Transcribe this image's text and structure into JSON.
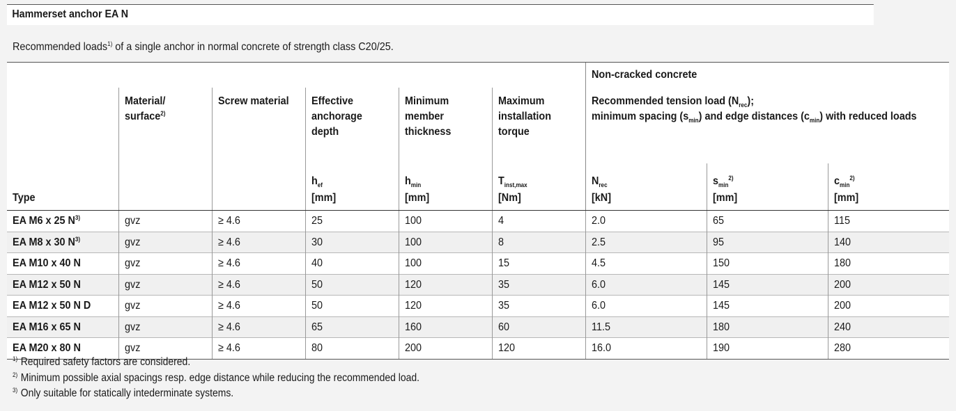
{
  "title": "Hammerset anchor EA N",
  "intro": {
    "before": "Recommended loads",
    "sup": "1)",
    "after": " of a single anchor in normal concrete of strength class C20/25."
  },
  "header": {
    "group_title": "Non-cracked concrete",
    "group_line1": {
      "a": "Recommended tension load (N",
      "sub": "rec",
      "b": ");"
    },
    "group_line2": {
      "a": "minimum spacing (s",
      "sub1": "min",
      "b": ") and edge distances (c",
      "sub2": "min",
      "c": ") with reduced loads"
    },
    "type": "Type",
    "material": {
      "line1": "Material/",
      "line2": "surface",
      "sup": "2)"
    },
    "screw": "Screw material",
    "effective": {
      "l1": "Effective",
      "l2": "anchorage",
      "l3": "depth",
      "sym": "h",
      "sub": "ef",
      "unit": "[mm]"
    },
    "minimum": {
      "l1": "Minimum",
      "l2": "member",
      "l3": "thickness",
      "sym": "h",
      "sub": "min",
      "unit": "[mm]"
    },
    "torque": {
      "l1": "Maximum",
      "l2": "installation",
      "l3": "torque",
      "sym": "T",
      "sub": "inst,max",
      "unit": "[Nm]"
    },
    "nrec": {
      "sym": "N",
      "sub": "rec",
      "unit": "[kN]"
    },
    "smin": {
      "sym": "s",
      "sub": "min",
      "sup": "2)",
      "unit": "[mm]"
    },
    "cmin": {
      "sym": "c",
      "sub": "min",
      "sup": "2)",
      "unit": "[mm]"
    }
  },
  "rows": [
    {
      "type": "EA M6 x 25 N",
      "sup": "3)",
      "material": "gvz",
      "screw": "≥ 4.6",
      "hef": "25",
      "hmin": "100",
      "tinst": "4",
      "nrec": "2.0",
      "smin": "65",
      "cmin": "115"
    },
    {
      "type": "EA M8 x 30 N",
      "sup": "3)",
      "material": "gvz",
      "screw": "≥ 4.6",
      "hef": "30",
      "hmin": "100",
      "tinst": "8",
      "nrec": "2.5",
      "smin": "95",
      "cmin": "140"
    },
    {
      "type": "EA M10 x 40 N",
      "sup": "",
      "material": "gvz",
      "screw": "≥ 4.6",
      "hef": "40",
      "hmin": "100",
      "tinst": "15",
      "nrec": "4.5",
      "smin": "150",
      "cmin": "180"
    },
    {
      "type": "EA M12 x 50 N",
      "sup": "",
      "material": "gvz",
      "screw": "≥ 4.6",
      "hef": "50",
      "hmin": "120",
      "tinst": "35",
      "nrec": "6.0",
      "smin": "145",
      "cmin": "200"
    },
    {
      "type": "EA M12 x 50 N D",
      "sup": "",
      "material": "gvz",
      "screw": "≥ 4.6",
      "hef": "50",
      "hmin": "120",
      "tinst": "35",
      "nrec": "6.0",
      "smin": "145",
      "cmin": "200"
    },
    {
      "type": "EA M16 x 65 N",
      "sup": "",
      "material": "gvz",
      "screw": "≥ 4.6",
      "hef": "65",
      "hmin": "160",
      "tinst": "60",
      "nrec": "11.5",
      "smin": "180",
      "cmin": "240"
    },
    {
      "type": "EA M20 x 80 N",
      "sup": "",
      "material": "gvz",
      "screw": "≥ 4.6",
      "hef": "80",
      "hmin": "200",
      "tinst": "120",
      "nrec": "16.0",
      "smin": "190",
      "cmin": "280"
    }
  ],
  "footnotes": [
    {
      "mark": "1)",
      "text": "Required safety factors are considered."
    },
    {
      "mark": "2)",
      "text": "Minimum possible axial spacings resp. edge distance while reducing the recommended load."
    },
    {
      "mark": "3)",
      "text": "Only suitable for statically intederminate systems."
    }
  ]
}
